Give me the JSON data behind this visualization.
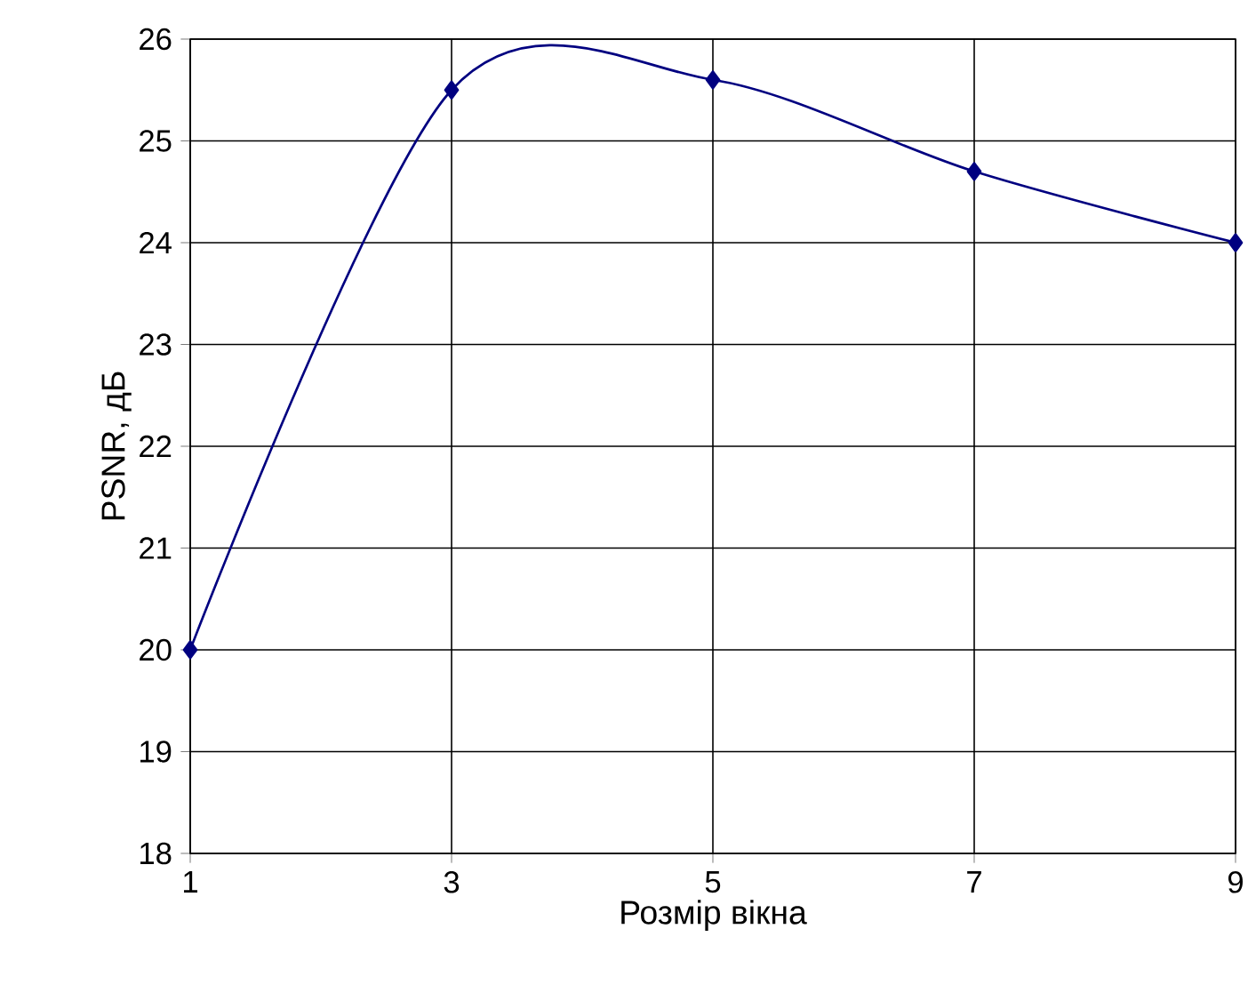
{
  "chart_data": {
    "type": "line",
    "xlabel": "Розмір вікна",
    "ylabel": "PSNR, дБ",
    "x": [
      1,
      3,
      5,
      7,
      9
    ],
    "series": [
      {
        "color": "#000080",
        "values": [
          20,
          25.5,
          25.6,
          24.7,
          24.0
        ]
      }
    ],
    "xlim": [
      1,
      9
    ],
    "xticks": [
      1,
      3,
      5,
      7,
      9
    ],
    "ylim": [
      18,
      26
    ],
    "yticks": [
      18,
      19,
      20,
      21,
      22,
      23,
      24,
      25,
      26
    ],
    "grid": true,
    "marker": "diamond",
    "line_style": "solid"
  }
}
